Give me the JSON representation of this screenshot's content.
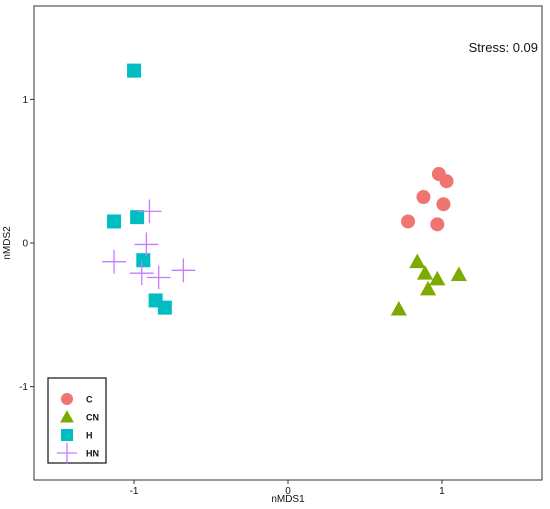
{
  "chart_data": {
    "type": "scatter",
    "title": "",
    "xlabel": "nMDS1",
    "ylabel": "nMDS2",
    "xlim": [
      -1.65,
      1.65
    ],
    "ylim": [
      -1.65,
      1.65
    ],
    "x_ticks": [
      -1,
      0,
      1
    ],
    "y_ticks": [
      -1,
      0,
      1
    ],
    "x_tick_labels": [
      "-1",
      "0",
      "1"
    ],
    "y_tick_labels": [
      "-1",
      "0",
      "1"
    ],
    "grid": false,
    "legend_position": "bottom-left",
    "annotation": "Stress: 0.09",
    "series": [
      {
        "name": "C",
        "marker": "circle",
        "color": "#f07470",
        "points": [
          {
            "x": 0.98,
            "y": 0.48
          },
          {
            "x": 1.03,
            "y": 0.43
          },
          {
            "x": 0.88,
            "y": 0.32
          },
          {
            "x": 1.01,
            "y": 0.27
          },
          {
            "x": 0.78,
            "y": 0.15
          },
          {
            "x": 0.97,
            "y": 0.13
          }
        ]
      },
      {
        "name": "CN",
        "marker": "triangle",
        "color": "#7caa00",
        "points": [
          {
            "x": 0.84,
            "y": -0.13
          },
          {
            "x": 0.89,
            "y": -0.21
          },
          {
            "x": 0.97,
            "y": -0.25
          },
          {
            "x": 1.11,
            "y": -0.22
          },
          {
            "x": 0.91,
            "y": -0.32
          },
          {
            "x": 0.72,
            "y": -0.46
          }
        ]
      },
      {
        "name": "H",
        "marker": "square",
        "color": "#00bdc2",
        "points": [
          {
            "x": -1.0,
            "y": 1.2
          },
          {
            "x": -1.13,
            "y": 0.15
          },
          {
            "x": -0.98,
            "y": 0.18
          },
          {
            "x": -0.94,
            "y": -0.12
          },
          {
            "x": -0.86,
            "y": -0.4
          },
          {
            "x": -0.8,
            "y": -0.45
          }
        ]
      },
      {
        "name": "HN",
        "marker": "cross",
        "color": "#c77cff",
        "points": [
          {
            "x": -0.9,
            "y": 0.22
          },
          {
            "x": -0.92,
            "y": -0.01
          },
          {
            "x": -1.13,
            "y": -0.13
          },
          {
            "x": -0.95,
            "y": -0.21
          },
          {
            "x": -0.84,
            "y": -0.24
          },
          {
            "x": -0.68,
            "y": -0.19
          }
        ]
      }
    ]
  }
}
